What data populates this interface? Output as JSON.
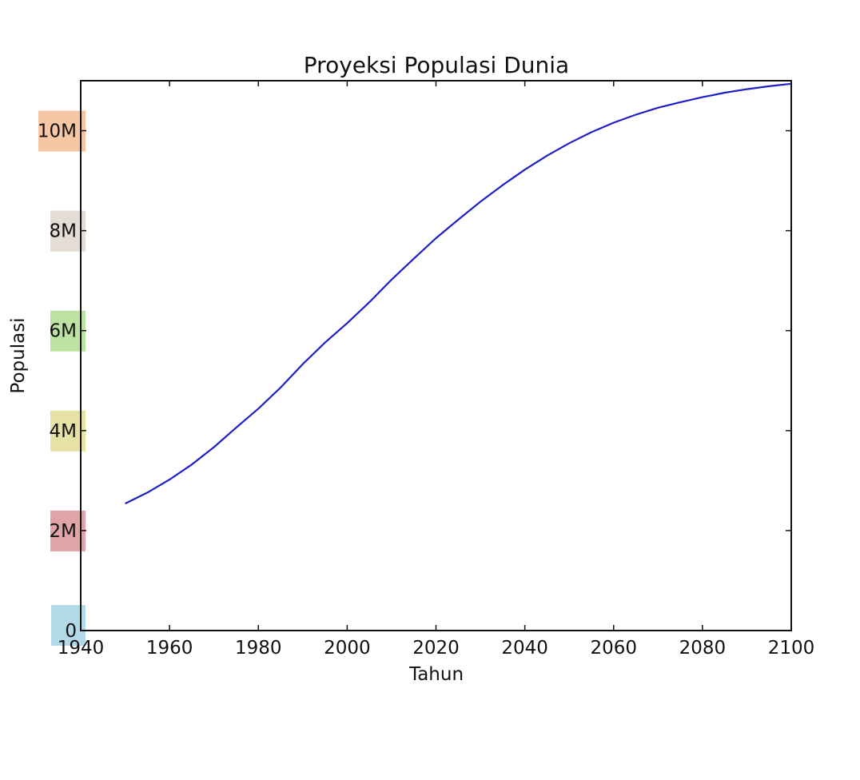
{
  "chart_data": {
    "type": "line",
    "title": "Proyeksi Populasi Dunia",
    "xlabel": "Tahun",
    "ylabel": "Populasi",
    "xlim": [
      1940,
      2100
    ],
    "ylim": [
      0,
      11000000
    ],
    "grid": false,
    "x_ticks": [
      1940,
      1960,
      1980,
      2000,
      2020,
      2040,
      2060,
      2080,
      2100
    ],
    "y_ticks": [
      {
        "value": 0,
        "label": "0",
        "highlight": "#b3d9e8"
      },
      {
        "value": 2000000,
        "label": "2M",
        "highlight": "#e0a3a8"
      },
      {
        "value": 4000000,
        "label": "4M",
        "highlight": "#e6e2a3"
      },
      {
        "value": 6000000,
        "label": "6M",
        "highlight": "#bde3a3"
      },
      {
        "value": 8000000,
        "label": "8M",
        "highlight": "#e3ddd6"
      },
      {
        "value": 10000000,
        "label": "10M",
        "highlight": "#f7c6a4"
      }
    ],
    "series": [
      {
        "color": "#1f1fc8",
        "x": [
          1950,
          1955,
          1960,
          1965,
          1970,
          1975,
          1980,
          1985,
          1990,
          1995,
          2000,
          2005,
          2010,
          2015,
          2020,
          2025,
          2030,
          2035,
          2040,
          2045,
          2050,
          2055,
          2060,
          2065,
          2070,
          2075,
          2080,
          2085,
          2090,
          2095,
          2100
        ],
        "y": [
          2540000,
          2760000,
          3020000,
          3320000,
          3670000,
          4060000,
          4440000,
          4860000,
          5330000,
          5760000,
          6150000,
          6570000,
          7020000,
          7440000,
          7850000,
          8220000,
          8580000,
          8910000,
          9220000,
          9500000,
          9750000,
          9970000,
          10160000,
          10320000,
          10460000,
          10570000,
          10670000,
          10760000,
          10830000,
          10890000,
          10940000
        ]
      }
    ]
  }
}
